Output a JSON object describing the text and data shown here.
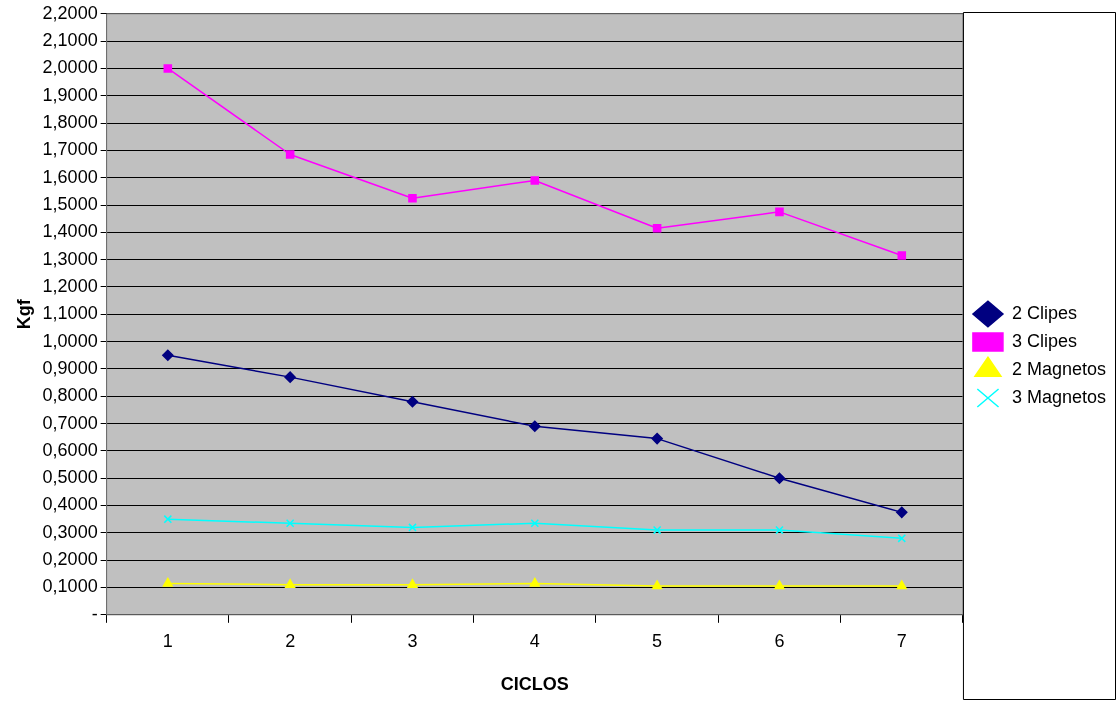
{
  "chart_data": {
    "type": "line",
    "xlabel": "CICLOS",
    "ylabel": "Kgf",
    "categories": [
      "1",
      "2",
      "3",
      "4",
      "5",
      "6",
      "7"
    ],
    "series": [
      {
        "name": "2 Clipes",
        "color": "#000080",
        "marker": "diamond",
        "values": [
          0.95,
          0.87,
          0.78,
          0.69,
          0.645,
          0.5,
          0.375
        ]
      },
      {
        "name": "3 Clipes",
        "color": "#ff00ff",
        "marker": "square",
        "values": [
          2.0,
          1.685,
          1.525,
          1.59,
          1.415,
          1.475,
          1.315
        ]
      },
      {
        "name": "2 Magnetos",
        "color": "#ffff00",
        "marker": "triangle",
        "values": [
          0.115,
          0.11,
          0.11,
          0.115,
          0.105,
          0.105,
          0.105
        ]
      },
      {
        "name": "3 Magnetos",
        "color": "#00ffff",
        "marker": "cross",
        "values": [
          0.35,
          0.335,
          0.32,
          0.335,
          0.31,
          0.31,
          0.28
        ]
      }
    ],
    "ylim": [
      0,
      2.2
    ],
    "yticks": [
      {
        "value": 0,
        "label": "-"
      },
      {
        "value": 0.1,
        "label": "0,1000"
      },
      {
        "value": 0.2,
        "label": "0,2000"
      },
      {
        "value": 0.3,
        "label": "0,3000"
      },
      {
        "value": 0.4,
        "label": "0,4000"
      },
      {
        "value": 0.5,
        "label": "0,5000"
      },
      {
        "value": 0.6,
        "label": "0,6000"
      },
      {
        "value": 0.7,
        "label": "0,7000"
      },
      {
        "value": 0.8,
        "label": "0,8000"
      },
      {
        "value": 0.9,
        "label": "0,9000"
      },
      {
        "value": 1.0,
        "label": "1,0000"
      },
      {
        "value": 1.1,
        "label": "1,1000"
      },
      {
        "value": 1.2,
        "label": "1,2000"
      },
      {
        "value": 1.3,
        "label": "1,3000"
      },
      {
        "value": 1.4,
        "label": "1,4000"
      },
      {
        "value": 1.5,
        "label": "1,5000"
      },
      {
        "value": 1.6,
        "label": "1,6000"
      },
      {
        "value": 1.7,
        "label": "1,7000"
      },
      {
        "value": 1.8,
        "label": "1,8000"
      },
      {
        "value": 1.9,
        "label": "1,9000"
      },
      {
        "value": 2.0,
        "label": "2,0000"
      },
      {
        "value": 2.1,
        "label": "2,1000"
      },
      {
        "value": 2.2,
        "label": "2,2000"
      }
    ],
    "grid": "y",
    "legend": "right",
    "line_style": "solid"
  }
}
